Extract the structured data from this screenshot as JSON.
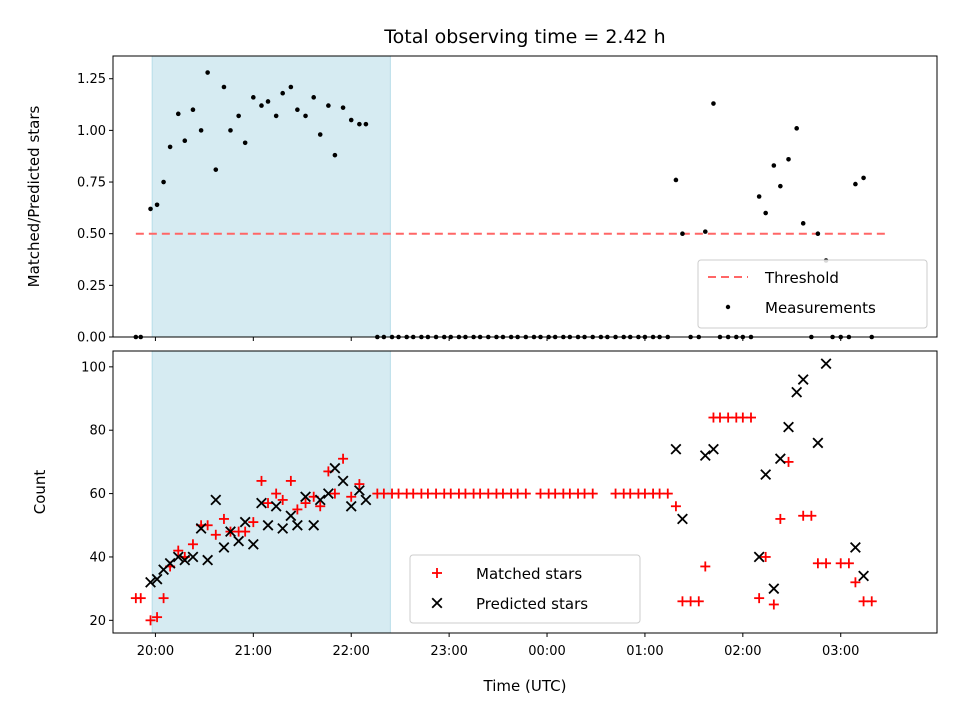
{
  "chart_data": [
    {
      "type": "scatter",
      "title": "Total observing time = 2.42 h",
      "xlabel": "",
      "ylabel": "Matched/Predicted stars",
      "xlim": [
        "19:34",
        "03:59"
      ],
      "ylim": [
        0,
        1.36
      ],
      "yticks": [
        "0.00",
        "0.25",
        "0.50",
        "0.75",
        "1.00",
        "1.25"
      ],
      "ytick_values": [
        0,
        0.25,
        0.5,
        0.75,
        1.0,
        1.25
      ],
      "xtick_values": [
        "20:00",
        "21:00",
        "22:00",
        "23:00",
        "00:00",
        "01:00",
        "02:00",
        "03:00"
      ],
      "grid": false,
      "legend_position": "lower-right",
      "shaded_region": {
        "start": "19:58",
        "end": "22:24",
        "color": "#add8e6"
      },
      "colors": {
        "threshold": "#ff6666",
        "measurements": "#000000",
        "shade": "#add8e6"
      },
      "threshold": {
        "name": "Threshold",
        "value": 0.5,
        "x_start": "19:48",
        "x_end": "03:30"
      },
      "series": [
        {
          "name": "Measurements",
          "points": [
            [
              "19:48",
              0
            ],
            [
              "19:51",
              0
            ],
            [
              "19:57",
              0.62
            ],
            [
              "20:01",
              0.64
            ],
            [
              "20:05",
              0.75
            ],
            [
              "20:09",
              0.92
            ],
            [
              "20:14",
              1.08
            ],
            [
              "20:18",
              0.95
            ],
            [
              "20:23",
              1.1
            ],
            [
              "20:28",
              1.0
            ],
            [
              "20:32",
              1.28
            ],
            [
              "20:37",
              0.81
            ],
            [
              "20:42",
              1.21
            ],
            [
              "20:46",
              1.0
            ],
            [
              "20:51",
              1.07
            ],
            [
              "20:55",
              0.94
            ],
            [
              "21:00",
              1.16
            ],
            [
              "21:05",
              1.12
            ],
            [
              "21:09",
              1.14
            ],
            [
              "21:14",
              1.07
            ],
            [
              "21:18",
              1.18
            ],
            [
              "21:23",
              1.21
            ],
            [
              "21:27",
              1.1
            ],
            [
              "21:32",
              1.07
            ],
            [
              "21:37",
              1.16
            ],
            [
              "21:41",
              0.98
            ],
            [
              "21:46",
              1.12
            ],
            [
              "21:50",
              0.88
            ],
            [
              "21:55",
              1.11
            ],
            [
              "22:00",
              1.05
            ],
            [
              "22:05",
              1.03
            ],
            [
              "22:09",
              1.03
            ],
            [
              "22:16",
              0
            ],
            [
              "22:20",
              0
            ],
            [
              "22:25",
              0
            ],
            [
              "22:29",
              0
            ],
            [
              "22:34",
              0
            ],
            [
              "22:38",
              0
            ],
            [
              "22:43",
              0
            ],
            [
              "22:47",
              0
            ],
            [
              "22:52",
              0
            ],
            [
              "22:57",
              0
            ],
            [
              "23:01",
              0
            ],
            [
              "23:06",
              0
            ],
            [
              "23:10",
              0
            ],
            [
              "23:15",
              0
            ],
            [
              "23:19",
              0
            ],
            [
              "23:24",
              0
            ],
            [
              "23:29",
              0
            ],
            [
              "23:33",
              0
            ],
            [
              "23:38",
              0
            ],
            [
              "23:42",
              0
            ],
            [
              "23:47",
              0
            ],
            [
              "23:52",
              0
            ],
            [
              "23:56",
              0
            ],
            [
              "00:01",
              0
            ],
            [
              "00:05",
              0
            ],
            [
              "00:10",
              0
            ],
            [
              "00:14",
              0
            ],
            [
              "00:19",
              0
            ],
            [
              "00:23",
              0
            ],
            [
              "00:28",
              0
            ],
            [
              "00:33",
              0
            ],
            [
              "00:37",
              0
            ],
            [
              "00:42",
              0
            ],
            [
              "00:47",
              0
            ],
            [
              "00:51",
              0
            ],
            [
              "00:56",
              0
            ],
            [
              "01:00",
              0
            ],
            [
              "01:05",
              0
            ],
            [
              "01:09",
              0
            ],
            [
              "01:14",
              0
            ],
            [
              "01:19",
              0.76
            ],
            [
              "01:23",
              0.5
            ],
            [
              "01:28",
              0
            ],
            [
              "01:33",
              0
            ],
            [
              "01:37",
              0.51
            ],
            [
              "01:42",
              1.13
            ],
            [
              "01:46",
              0
            ],
            [
              "01:51",
              0
            ],
            [
              "01:56",
              0
            ],
            [
              "02:00",
              0
            ],
            [
              "02:05",
              0
            ],
            [
              "02:10",
              0.68
            ],
            [
              "02:14",
              0.6
            ],
            [
              "02:19",
              0.83
            ],
            [
              "02:23",
              0.73
            ],
            [
              "02:28",
              0.86
            ],
            [
              "02:33",
              1.01
            ],
            [
              "02:37",
              0.55
            ],
            [
              "02:42",
              0
            ],
            [
              "02:46",
              0.5
            ],
            [
              "02:51",
              0.37
            ],
            [
              "02:55",
              0
            ],
            [
              "03:00",
              0
            ],
            [
              "03:05",
              0
            ],
            [
              "03:09",
              0.74
            ],
            [
              "03:14",
              0.77
            ],
            [
              "03:19",
              0
            ]
          ]
        }
      ]
    },
    {
      "type": "scatter",
      "title": "",
      "xlabel": "Time (UTC)",
      "ylabel": "Count",
      "xlim": [
        "19:34",
        "03:59"
      ],
      "ylim": [
        16,
        105
      ],
      "yticks": [
        "20",
        "40",
        "60",
        "80",
        "100"
      ],
      "ytick_values": [
        20,
        40,
        60,
        80,
        100
      ],
      "xticks": [
        "20:00",
        "21:00",
        "22:00",
        "23:00",
        "00:00",
        "01:00",
        "02:00",
        "03:00"
      ],
      "xtick_values": [
        "20:00",
        "21:00",
        "22:00",
        "23:00",
        "00:00",
        "01:00",
        "02:00",
        "03:00"
      ],
      "grid": false,
      "legend_position": "bottom-center",
      "shaded_region": {
        "start": "19:58",
        "end": "22:24",
        "color": "#add8e6"
      },
      "colors": {
        "matched": "#ff0000",
        "predicted": "#000000",
        "shade": "#add8e6"
      },
      "series": [
        {
          "name": "Matched stars",
          "marker": "plus",
          "points": [
            [
              "19:48",
              27
            ],
            [
              "19:51",
              27
            ],
            [
              "19:57",
              20
            ],
            [
              "20:01",
              21
            ],
            [
              "20:05",
              27
            ],
            [
              "20:09",
              37
            ],
            [
              "20:14",
              42
            ],
            [
              "20:18",
              40
            ],
            [
              "20:23",
              44
            ],
            [
              "20:28",
              50
            ],
            [
              "20:32",
              50
            ],
            [
              "20:37",
              47
            ],
            [
              "20:42",
              52
            ],
            [
              "20:46",
              48
            ],
            [
              "20:51",
              48
            ],
            [
              "20:55",
              48
            ],
            [
              "21:00",
              51
            ],
            [
              "21:05",
              64
            ],
            [
              "21:09",
              57
            ],
            [
              "21:14",
              60
            ],
            [
              "21:18",
              58
            ],
            [
              "21:23",
              64
            ],
            [
              "21:27",
              55
            ],
            [
              "21:32",
              57
            ],
            [
              "21:37",
              59
            ],
            [
              "21:41",
              56
            ],
            [
              "21:46",
              67
            ],
            [
              "21:50",
              60
            ],
            [
              "21:55",
              71
            ],
            [
              "22:00",
              59
            ],
            [
              "22:05",
              63
            ],
            [
              "22:16",
              60
            ],
            [
              "22:20",
              60
            ],
            [
              "22:25",
              60
            ],
            [
              "22:29",
              60
            ],
            [
              "22:34",
              60
            ],
            [
              "22:38",
              60
            ],
            [
              "22:43",
              60
            ],
            [
              "22:47",
              60
            ],
            [
              "22:52",
              60
            ],
            [
              "22:57",
              60
            ],
            [
              "23:01",
              60
            ],
            [
              "23:06",
              60
            ],
            [
              "23:10",
              60
            ],
            [
              "23:15",
              60
            ],
            [
              "23:19",
              60
            ],
            [
              "23:24",
              60
            ],
            [
              "23:29",
              60
            ],
            [
              "23:33",
              60
            ],
            [
              "23:38",
              60
            ],
            [
              "23:42",
              60
            ],
            [
              "23:47",
              60
            ],
            [
              "23:56",
              60
            ],
            [
              "00:01",
              60
            ],
            [
              "00:05",
              60
            ],
            [
              "00:10",
              60
            ],
            [
              "00:14",
              60
            ],
            [
              "00:19",
              60
            ],
            [
              "00:23",
              60
            ],
            [
              "00:28",
              60
            ],
            [
              "00:42",
              60
            ],
            [
              "00:47",
              60
            ],
            [
              "00:51",
              60
            ],
            [
              "00:56",
              60
            ],
            [
              "01:00",
              60
            ],
            [
              "01:05",
              60
            ],
            [
              "01:09",
              60
            ],
            [
              "01:14",
              60
            ],
            [
              "01:19",
              56
            ],
            [
              "01:23",
              26
            ],
            [
              "01:28",
              26
            ],
            [
              "01:33",
              26
            ],
            [
              "01:37",
              37
            ],
            [
              "01:42",
              84
            ],
            [
              "01:46",
              84
            ],
            [
              "01:51",
              84
            ],
            [
              "01:56",
              84
            ],
            [
              "02:00",
              84
            ],
            [
              "02:05",
              84
            ],
            [
              "02:10",
              27
            ],
            [
              "02:14",
              40
            ],
            [
              "02:19",
              25
            ],
            [
              "02:23",
              52
            ],
            [
              "02:28",
              70
            ],
            [
              "02:37",
              53
            ],
            [
              "02:42",
              53
            ],
            [
              "02:46",
              38
            ],
            [
              "02:51",
              38
            ],
            [
              "03:00",
              38
            ],
            [
              "03:05",
              38
            ],
            [
              "03:09",
              32
            ],
            [
              "03:14",
              26
            ],
            [
              "03:19",
              26
            ]
          ]
        },
        {
          "name": "Predicted stars",
          "marker": "x",
          "points": [
            [
              "19:57",
              32
            ],
            [
              "20:01",
              33
            ],
            [
              "20:05",
              36
            ],
            [
              "20:09",
              38
            ],
            [
              "20:14",
              40
            ],
            [
              "20:18",
              39
            ],
            [
              "20:23",
              40
            ],
            [
              "20:28",
              49
            ],
            [
              "20:32",
              39
            ],
            [
              "20:37",
              58
            ],
            [
              "20:42",
              43
            ],
            [
              "20:46",
              48
            ],
            [
              "20:51",
              45
            ],
            [
              "20:55",
              51
            ],
            [
              "21:00",
              44
            ],
            [
              "21:05",
              57
            ],
            [
              "21:09",
              50
            ],
            [
              "21:14",
              56
            ],
            [
              "21:18",
              49
            ],
            [
              "21:23",
              53
            ],
            [
              "21:27",
              50
            ],
            [
              "21:32",
              59
            ],
            [
              "21:37",
              50
            ],
            [
              "21:41",
              58
            ],
            [
              "21:46",
              60
            ],
            [
              "21:50",
              68
            ],
            [
              "21:55",
              64
            ],
            [
              "22:00",
              56
            ],
            [
              "22:05",
              61
            ],
            [
              "22:09",
              58
            ],
            [
              "01:19",
              74
            ],
            [
              "01:23",
              52
            ],
            [
              "01:37",
              72
            ],
            [
              "01:42",
              74
            ],
            [
              "02:10",
              40
            ],
            [
              "02:14",
              66
            ],
            [
              "02:19",
              30
            ],
            [
              "02:23",
              71
            ],
            [
              "02:28",
              81
            ],
            [
              "02:33",
              92
            ],
            [
              "02:37",
              96
            ],
            [
              "02:46",
              76
            ],
            [
              "02:51",
              101
            ],
            [
              "03:09",
              43
            ],
            [
              "03:14",
              34
            ]
          ]
        }
      ]
    }
  ]
}
